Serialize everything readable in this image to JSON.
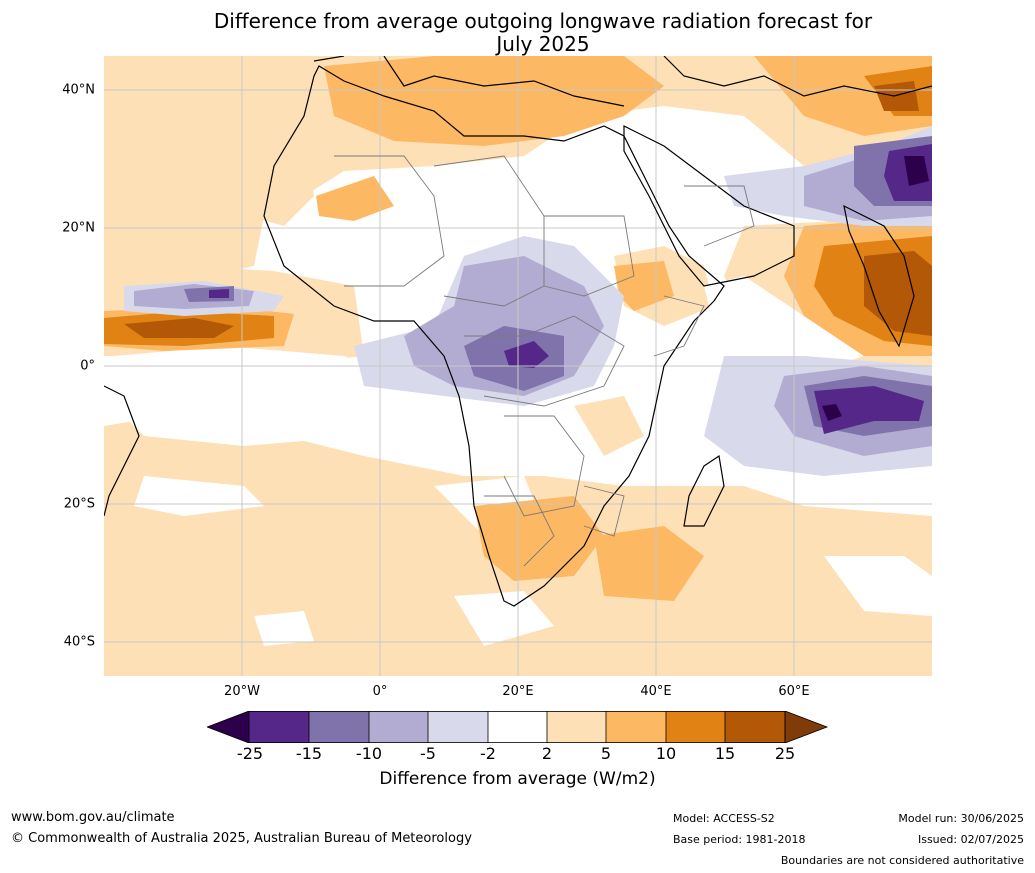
{
  "title_line1": "Difference from average outgoing longwave radiation forecast for",
  "title_line2": "July 2025",
  "lat_labels": [
    "40°N",
    "20°N",
    "0°",
    "20°S",
    "40°S"
  ],
  "lon_labels": [
    "20°W",
    "0°",
    "20°E",
    "40°E",
    "60°E"
  ],
  "colorbar": {
    "ticks": [
      "-25",
      "-15",
      "-10",
      "-5",
      "-2",
      "2",
      "5",
      "10",
      "15",
      "25"
    ],
    "colors": {
      "under": "#2d004b",
      "-25_-15": "#542788",
      "-15_-10": "#8073ac",
      "-10_-5": "#b2abd2",
      "-5_-2": "#d8daeb",
      "-2_2": "#ffffff",
      "2_5": "#fee0b6",
      "5_10": "#fdb863",
      "10_15": "#e08214",
      "15_25": "#b35806",
      "over": "#7f3b08"
    },
    "label": "Difference from average (W/m2)"
  },
  "footer": {
    "website": "www.bom.gov.au/climate",
    "copyright": "© Commonwealth of Australia 2025, Australian Bureau of Meteorology",
    "model": "Model: ACCESS-S2",
    "base_period": "Base period: 1981-2018",
    "model_run": "Model run: 30/06/2025",
    "issued": "Issued: 02/07/2025",
    "disclaimer": "Boundaries are not considered authoritative"
  }
}
